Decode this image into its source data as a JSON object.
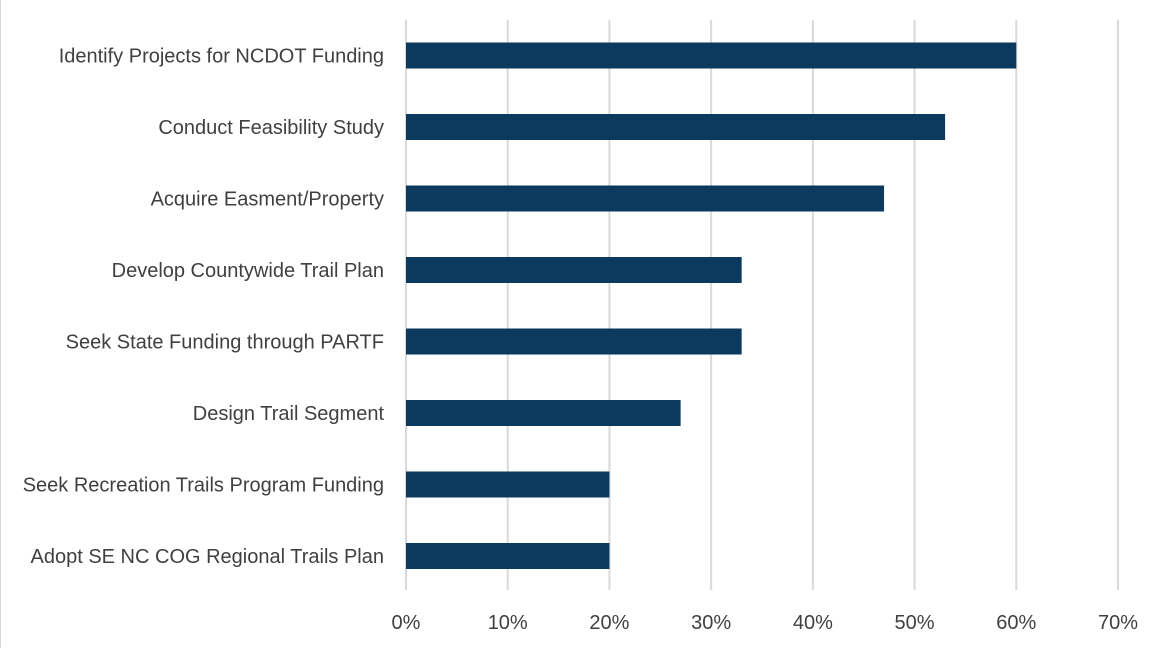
{
  "chart_data": {
    "type": "bar",
    "orientation": "horizontal",
    "title": "",
    "xlabel": "",
    "ylabel": "",
    "categories": [
      "Identify Projects for NCDOT Funding",
      "Conduct Feasibility Study",
      "Acquire Easment/Property",
      "Develop Countywide Trail Plan",
      "Seek State Funding through PARTF",
      "Design Trail Segment",
      "Seek Recreation Trails Program Funding",
      "Adopt SE NC COG Regional Trails Plan"
    ],
    "values": [
      60,
      53,
      47,
      33,
      33,
      27,
      20,
      20
    ],
    "xlim": [
      0,
      70
    ],
    "x_ticks": [
      0,
      10,
      20,
      30,
      40,
      50,
      60,
      70
    ],
    "x_tick_labels": [
      "0%",
      "10%",
      "20%",
      "30%",
      "40%",
      "50%",
      "60%",
      "70%"
    ],
    "grid": true,
    "legend": "none",
    "bar_color": "#0b3a5e"
  }
}
